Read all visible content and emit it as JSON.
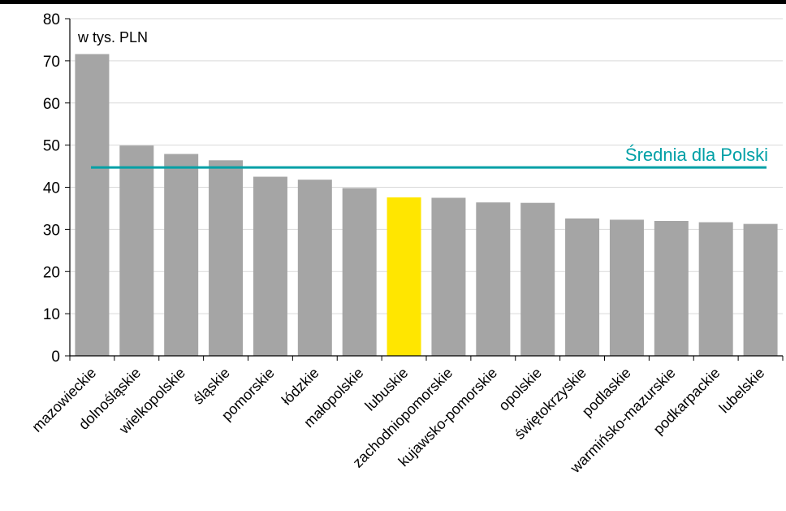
{
  "chart_data": {
    "type": "bar",
    "unit_label": "w tys. PLN",
    "categories": [
      "mazowieckie",
      "dolnośląskie",
      "wielkopolskie",
      "śląskie",
      "pomorskie",
      "łódzkie",
      "małopolskie",
      "lubuskie",
      "zachodniopomorskie",
      "kujawsko-pomorskie",
      "opolskie",
      "świętokrzyskie",
      "podlaskie",
      "warmińsko-mazurskie",
      "podkarpackie",
      "lubelskie"
    ],
    "values": [
      71.6,
      49.9,
      47.9,
      46.4,
      42.5,
      41.8,
      39.8,
      37.6,
      37.5,
      36.4,
      36.3,
      32.6,
      32.3,
      32.0,
      31.7,
      31.3
    ],
    "highlight_category": "lubuskie",
    "ylim": [
      0,
      80
    ],
    "yticks": [
      "0",
      "10",
      "20",
      "30",
      "40",
      "50",
      "60",
      "70",
      "80"
    ],
    "grid": true,
    "reference_line": {
      "label": "Średnia dla Polski",
      "value": 44.7
    },
    "colors": {
      "bar": "#A5A5A5",
      "highlight": "#FFE600",
      "reference": "#00A0A6",
      "grid": "#D9D9D9"
    }
  }
}
